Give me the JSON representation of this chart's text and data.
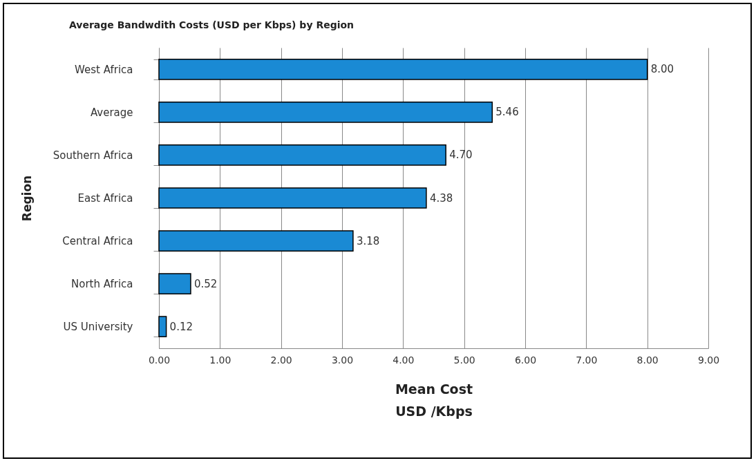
{
  "chart_data": {
    "type": "bar",
    "orientation": "horizontal",
    "title": "Average Bandwdith Costs (USD per Kbps) by Region",
    "xlabel": "Mean Cost\nUSD /Kbps",
    "ylabel": "Region",
    "categories": [
      "West Africa",
      "Average",
      "Southern Africa",
      "East Africa",
      "Central Africa",
      "North Africa",
      "US University"
    ],
    "values": [
      8.0,
      5.46,
      4.7,
      4.38,
      3.18,
      0.52,
      0.12
    ],
    "value_labels": [
      "8.00",
      "5.46",
      "4.70",
      "4.38",
      "3.18",
      "0.52",
      "0.12"
    ],
    "color": "#1a8ad4",
    "xlim": [
      0,
      9
    ],
    "xticks": [
      {
        "value": 0,
        "label": "0.00"
      },
      {
        "value": 1,
        "label": "1.00"
      },
      {
        "value": 2,
        "label": "2.00"
      },
      {
        "value": 3,
        "label": "3.00"
      },
      {
        "value": 4,
        "label": "4.00"
      },
      {
        "value": 5,
        "label": "5.00"
      },
      {
        "value": 6,
        "label": "6.00"
      },
      {
        "value": 7,
        "label": "7.00"
      },
      {
        "value": 8,
        "label": "8.00"
      },
      {
        "value": 9,
        "label": "9.00"
      }
    ],
    "grid": "x"
  }
}
